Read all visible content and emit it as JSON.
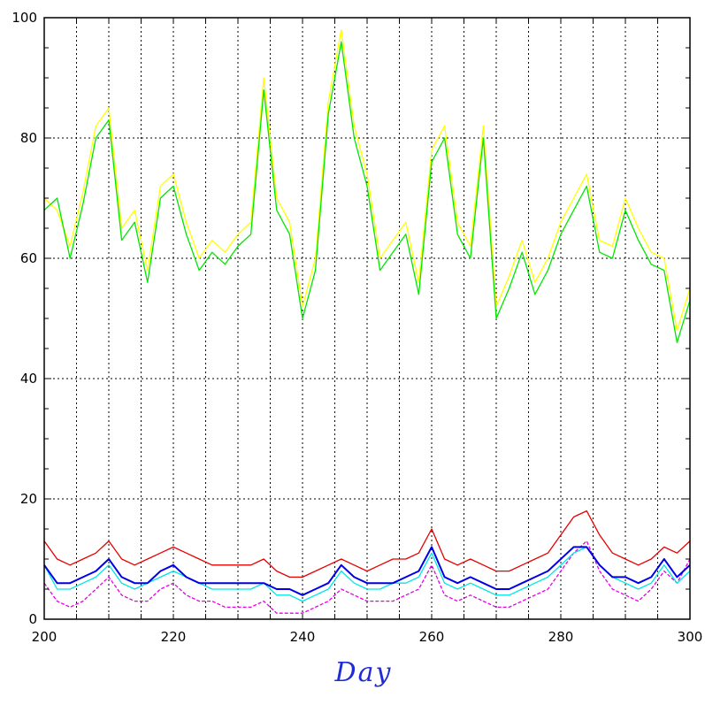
{
  "chart_data": {
    "type": "line",
    "title": "",
    "xlabel": "Day",
    "ylabel": "",
    "xlim": [
      200,
      300
    ],
    "ylim": [
      0,
      100
    ],
    "x_ticks": [
      200,
      220,
      240,
      260,
      280,
      300
    ],
    "x_tick_labels": [
      "200",
      "220",
      "240",
      "260",
      "280",
      "300"
    ],
    "y_ticks": [
      0,
      20,
      40,
      60,
      80,
      100
    ],
    "y_tick_labels": [
      "0",
      "20",
      "40",
      "60",
      "80",
      "100"
    ],
    "x_grid_every": 5,
    "y_grid_every": 20,
    "grid": true,
    "legend": "none",
    "colors": {
      "yellow": "#ffff00",
      "green": "#00e600",
      "red": "#e60000",
      "magenta": "#e600e6",
      "cyan": "#00e6e6",
      "blue": "#0000e6",
      "axis_label": "#1f2bd6"
    },
    "series": [
      {
        "color": "yellow",
        "x": [
          200,
          202,
          204,
          206,
          208,
          210,
          212,
          214,
          216,
          218,
          220,
          222,
          224,
          226,
          228,
          230,
          232,
          234,
          236,
          238,
          240,
          242,
          244,
          246,
          248,
          250,
          252,
          254,
          256,
          258,
          260,
          262,
          264,
          266,
          268,
          270,
          272,
          274,
          276,
          278,
          280,
          282,
          284,
          286,
          288,
          290,
          292,
          294,
          296,
          298,
          300
        ],
        "y": [
          70,
          68,
          62,
          71,
          82,
          85,
          65,
          68,
          58,
          72,
          74,
          66,
          60,
          63,
          61,
          64,
          66,
          90,
          70,
          66,
          52,
          60,
          86,
          98,
          82,
          74,
          60,
          63,
          66,
          56,
          78,
          82,
          66,
          62,
          82,
          52,
          57,
          63,
          56,
          60,
          66,
          70,
          74,
          63,
          62,
          70,
          65,
          61,
          60,
          48,
          55
        ]
      },
      {
        "color": "green",
        "x": [
          200,
          202,
          204,
          206,
          208,
          210,
          212,
          214,
          216,
          218,
          220,
          222,
          224,
          226,
          228,
          230,
          232,
          234,
          236,
          238,
          240,
          242,
          244,
          246,
          248,
          250,
          252,
          254,
          256,
          258,
          260,
          262,
          264,
          266,
          268,
          270,
          272,
          274,
          276,
          278,
          280,
          282,
          284,
          286,
          288,
          290,
          292,
          294,
          296,
          298,
          300
        ],
        "y": [
          68,
          70,
          60,
          69,
          80,
          83,
          63,
          66,
          56,
          70,
          72,
          64,
          58,
          61,
          59,
          62,
          64,
          88,
          68,
          64,
          50,
          58,
          84,
          96,
          80,
          72,
          58,
          61,
          64,
          54,
          76,
          80,
          64,
          60,
          80,
          50,
          55,
          61,
          54,
          58,
          64,
          68,
          72,
          61,
          60,
          68,
          63,
          59,
          58,
          46,
          53
        ]
      },
      {
        "color": "red",
        "x": [
          200,
          202,
          204,
          206,
          208,
          210,
          212,
          214,
          216,
          218,
          220,
          222,
          224,
          226,
          228,
          230,
          232,
          234,
          236,
          238,
          240,
          242,
          244,
          246,
          248,
          250,
          252,
          254,
          256,
          258,
          260,
          262,
          264,
          266,
          268,
          270,
          272,
          274,
          276,
          278,
          280,
          282,
          284,
          286,
          288,
          290,
          292,
          294,
          296,
          298,
          300
        ],
        "y": [
          13,
          10,
          9,
          10,
          11,
          13,
          10,
          9,
          10,
          11,
          12,
          11,
          10,
          9,
          9,
          9,
          9,
          10,
          8,
          7,
          7,
          8,
          9,
          10,
          9,
          8,
          9,
          10,
          10,
          11,
          15,
          10,
          9,
          10,
          9,
          8,
          8,
          9,
          10,
          11,
          14,
          17,
          18,
          14,
          11,
          10,
          9,
          10,
          12,
          11,
          13
        ]
      },
      {
        "color": "magenta",
        "x": [
          200,
          202,
          204,
          206,
          208,
          210,
          212,
          214,
          216,
          218,
          220,
          222,
          224,
          226,
          228,
          230,
          232,
          234,
          236,
          238,
          240,
          242,
          244,
          246,
          248,
          250,
          252,
          254,
          256,
          258,
          260,
          262,
          264,
          266,
          268,
          270,
          272,
          274,
          276,
          278,
          280,
          282,
          284,
          286,
          288,
          290,
          292,
          294,
          296,
          298,
          300
        ],
        "y": [
          6,
          3,
          2,
          3,
          5,
          7,
          4,
          3,
          3,
          5,
          6,
          4,
          3,
          3,
          2,
          2,
          2,
          3,
          1,
          1,
          1,
          2,
          3,
          5,
          4,
          3,
          3,
          3,
          4,
          5,
          9,
          4,
          3,
          4,
          3,
          2,
          2,
          3,
          4,
          5,
          8,
          11,
          13,
          8,
          5,
          4,
          3,
          5,
          8,
          6,
          10
        ]
      },
      {
        "color": "cyan",
        "x": [
          200,
          202,
          204,
          206,
          208,
          210,
          212,
          214,
          216,
          218,
          220,
          222,
          224,
          226,
          228,
          230,
          232,
          234,
          236,
          238,
          240,
          242,
          244,
          246,
          248,
          250,
          252,
          254,
          256,
          258,
          260,
          262,
          264,
          266,
          268,
          270,
          272,
          274,
          276,
          278,
          280,
          282,
          284,
          286,
          288,
          290,
          292,
          294,
          296,
          298,
          300
        ],
        "y": [
          9,
          5,
          5,
          6,
          7,
          9,
          6,
          5,
          6,
          7,
          8,
          7,
          6,
          5,
          5,
          5,
          5,
          6,
          4,
          4,
          3,
          4,
          5,
          8,
          6,
          5,
          5,
          6,
          6,
          7,
          11,
          6,
          5,
          6,
          5,
          4,
          4,
          5,
          6,
          7,
          9,
          11,
          12,
          9,
          7,
          6,
          5,
          6,
          9,
          6,
          8
        ]
      },
      {
        "color": "blue",
        "x": [
          200,
          202,
          204,
          206,
          208,
          210,
          212,
          214,
          216,
          218,
          220,
          222,
          224,
          226,
          228,
          230,
          232,
          234,
          236,
          238,
          240,
          242,
          244,
          246,
          248,
          250,
          252,
          254,
          256,
          258,
          260,
          262,
          264,
          266,
          268,
          270,
          272,
          274,
          276,
          278,
          280,
          282,
          284,
          286,
          288,
          290,
          292,
          294,
          296,
          298,
          300
        ],
        "y": [
          9,
          6,
          6,
          7,
          8,
          10,
          7,
          6,
          6,
          8,
          9,
          7,
          6,
          6,
          6,
          6,
          6,
          6,
          5,
          5,
          4,
          5,
          6,
          9,
          7,
          6,
          6,
          6,
          7,
          8,
          12,
          7,
          6,
          7,
          6,
          5,
          5,
          6,
          7,
          8,
          10,
          12,
          12,
          9,
          7,
          7,
          6,
          7,
          10,
          7,
          9
        ]
      }
    ]
  }
}
